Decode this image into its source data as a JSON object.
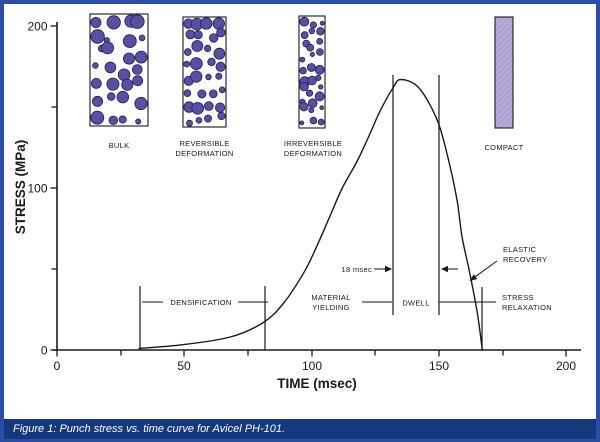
{
  "figure": {
    "caption": "Figure 1: Punch stress vs. time curve for Avicel PH-101."
  },
  "colors": {
    "frame_border": "#2b4ea4",
    "caption_bar": "#15377e",
    "caption_text": "#ffffff",
    "ink": "#1a1a1a",
    "particle_fill": "#574fa3",
    "particle_stroke": "#241f4e",
    "compact_fill": "#b5aad8",
    "compact_hatch": "#9d92cc"
  },
  "stages": [
    {
      "line1": "BULK",
      "line2": ""
    },
    {
      "line1": "REVERSIBLE",
      "line2": "DEFORMATION"
    },
    {
      "line1": "IRREVERSIBLE",
      "line2": "DEFORMATION"
    },
    {
      "line1": "COMPACT",
      "line2": ""
    }
  ],
  "labels": {
    "densification": "DENSIFICATION",
    "material_yielding_1": "MATERIAL",
    "material_yielding_2": "YIELDING",
    "dwell": "DWELL",
    "dwell_duration": "18 msec",
    "elastic_recovery_1": "ELASTIC",
    "elastic_recovery_2": "RECOVERY",
    "stress_relaxation_1": "STRESS",
    "stress_relaxation_2": "RELAXATION"
  },
  "chart_data": {
    "type": "line",
    "title": "",
    "xlabel": "TIME (msec)",
    "ylabel": "STRESS (MPa)",
    "xlim": [
      0,
      200
    ],
    "ylim": [
      0,
      200
    ],
    "x_ticks": [
      0,
      50,
      100,
      150,
      200
    ],
    "x_minor_ticks": [
      25,
      75,
      125,
      175
    ],
    "y_ticks": [
      0,
      100,
      200
    ],
    "y_minor_ticks": [
      50,
      150
    ],
    "grid": false,
    "legend": "none",
    "series": [
      {
        "name": "Punch stress, Avicel PH-101",
        "points": [
          [
            32,
            1
          ],
          [
            48,
            3
          ],
          [
            68,
            8
          ],
          [
            81,
            17
          ],
          [
            89,
            29
          ],
          [
            97,
            48
          ],
          [
            102,
            64
          ],
          [
            107,
            82
          ],
          [
            112,
            100
          ],
          [
            118,
            117
          ],
          [
            123,
            134
          ],
          [
            127,
            148
          ],
          [
            132,
            162
          ],
          [
            135,
            167
          ],
          [
            142,
            162
          ],
          [
            149,
            143
          ],
          [
            153,
            122
          ],
          [
            157,
            93
          ],
          [
            159,
            70
          ],
          [
            162,
            48
          ],
          [
            165,
            23
          ],
          [
            167,
            0
          ]
        ]
      }
    ],
    "annotations": {
      "peak_stress_mpa": 167,
      "peak_time_msec": 135,
      "phases": [
        {
          "label": "DENSIFICATION",
          "t_start": 33,
          "t_end": 82
        },
        {
          "label": "MATERIAL YIELDING",
          "t_start": 82,
          "t_end": 132
        },
        {
          "label": "DWELL",
          "t_start": 132,
          "t_end": 150,
          "duration": "18 msec"
        },
        {
          "label": "STRESS RELAXATION",
          "t_start": 150,
          "t_end": 167
        },
        {
          "label": "ELASTIC RECOVERY",
          "t_at": 162
        }
      ]
    }
  }
}
